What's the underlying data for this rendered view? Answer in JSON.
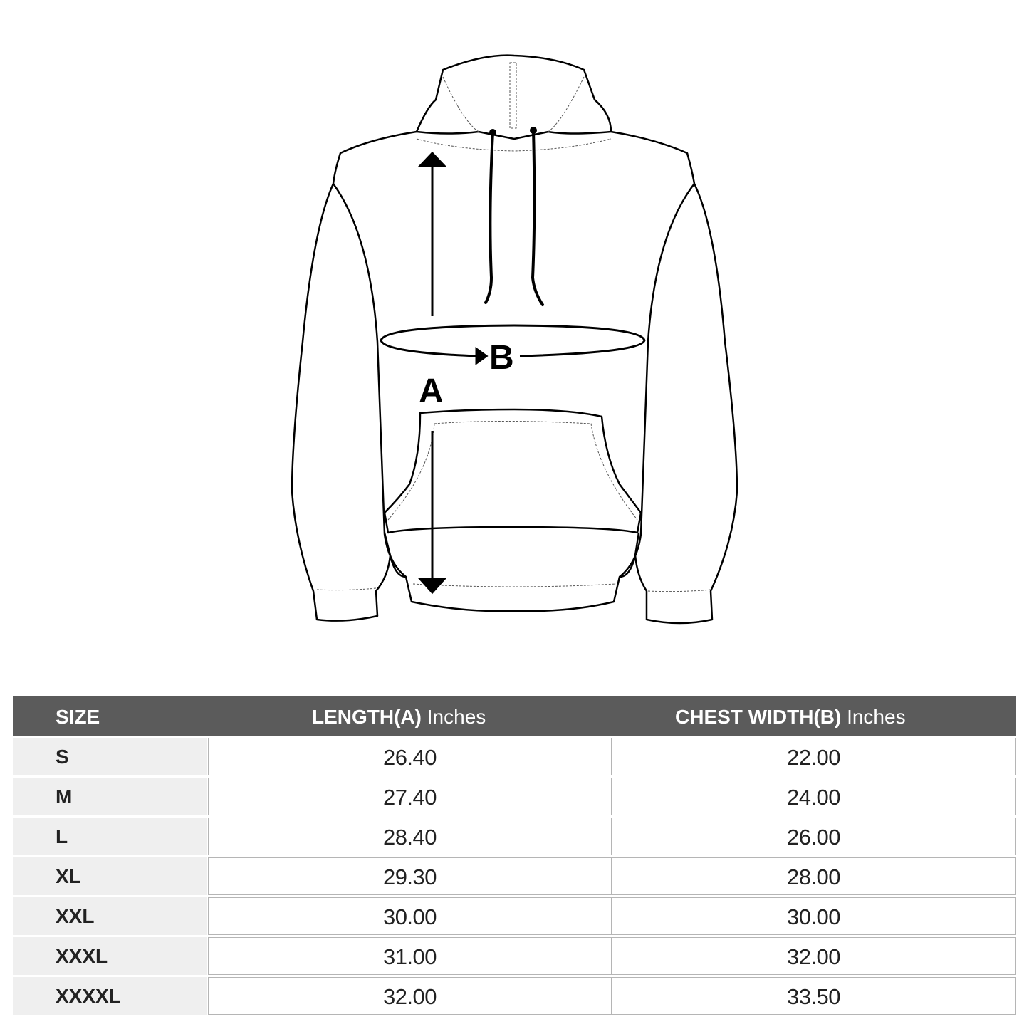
{
  "diagram": {
    "label_a": "A",
    "label_b": "B"
  },
  "table": {
    "headers": {
      "size": "SIZE",
      "length_bold": "LENGTH(A)",
      "length_unit": "Inches",
      "chest_bold": "CHEST WIDTH(B)",
      "chest_unit": "Inches"
    },
    "rows": [
      {
        "size": "S",
        "length": "26.40",
        "chest": "22.00"
      },
      {
        "size": "M",
        "length": "27.40",
        "chest": "24.00"
      },
      {
        "size": "L",
        "length": "28.40",
        "chest": "26.00"
      },
      {
        "size": "XL",
        "length": "29.30",
        "chest": "28.00"
      },
      {
        "size": "XXL",
        "length": "30.00",
        "chest": "30.00"
      },
      {
        "size": "XXXL",
        "length": "31.00",
        "chest": "32.00"
      },
      {
        "size": "XXXXL",
        "length": "32.00",
        "chest": "33.50"
      }
    ],
    "colors": {
      "header_bg": "#5b5b5b",
      "size_col_bg": "#efefef"
    }
  }
}
